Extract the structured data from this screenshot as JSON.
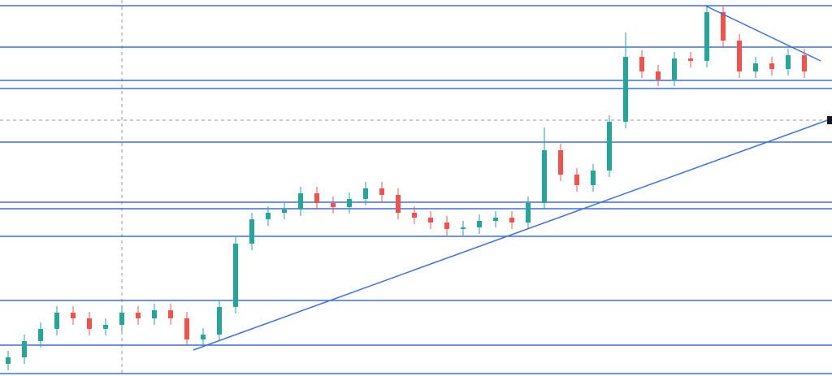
{
  "chart_data": {
    "type": "candlestick",
    "open": [
      15,
      23,
      43,
      58,
      78,
      71,
      58,
      63,
      78,
      71,
      81,
      71,
      45,
      51,
      85,
      163,
      193,
      201,
      205,
      225,
      213,
      208,
      218,
      231,
      223,
      201,
      195,
      189,
      181,
      183,
      191,
      195,
      189,
      213,
      278,
      248,
      235,
      253,
      313,
      393,
      375,
      365,
      391,
      388,
      448,
      413,
      375,
      385,
      378,
      395
    ],
    "high": [
      31,
      51,
      66,
      86,
      86,
      79,
      71,
      86,
      86,
      89,
      89,
      79,
      59,
      93,
      171,
      201,
      209,
      213,
      233,
      233,
      221,
      226,
      239,
      239,
      231,
      209,
      203,
      197,
      191,
      199,
      203,
      203,
      221,
      306,
      286,
      256,
      261,
      321,
      423,
      401,
      383,
      399,
      399,
      456,
      456,
      421,
      393,
      393,
      403,
      403
    ],
    "low": [
      7,
      15,
      35,
      50,
      63,
      50,
      50,
      55,
      63,
      63,
      63,
      37,
      37,
      43,
      77,
      155,
      185,
      193,
      197,
      205,
      200,
      200,
      210,
      215,
      193,
      187,
      181,
      173,
      173,
      175,
      183,
      181,
      181,
      205,
      240,
      227,
      227,
      245,
      305,
      367,
      357,
      357,
      380,
      380,
      405,
      367,
      367,
      370,
      370,
      367
    ],
    "close": [
      23,
      43,
      58,
      78,
      71,
      58,
      63,
      78,
      71,
      81,
      71,
      45,
      51,
      85,
      163,
      193,
      201,
      205,
      225,
      213,
      208,
      218,
      231,
      223,
      201,
      195,
      189,
      181,
      183,
      191,
      195,
      189,
      213,
      278,
      248,
      235,
      253,
      313,
      393,
      375,
      365,
      391,
      388,
      448,
      413,
      375,
      385,
      378,
      395,
      375
    ],
    "up_color": "#26a69a",
    "down_color": "#ef5350",
    "levels": [
      456,
      405,
      364,
      354,
      288,
      214,
      206,
      172,
      93,
      38,
      3
    ],
    "level_color": "#3d6ee6",
    "trendlines": [
      {
        "x": [
          11.4,
          50.7
        ],
        "y": [
          32,
          317
        ]
      },
      {
        "x": [
          42.9,
          50
        ],
        "y": [
          456,
          388
        ]
      }
    ],
    "crosshair": {
      "x": 7,
      "y": 315
    },
    "xlim": [
      -0.5,
      50.7
    ],
    "ylim": [
      0,
      463
    ]
  }
}
